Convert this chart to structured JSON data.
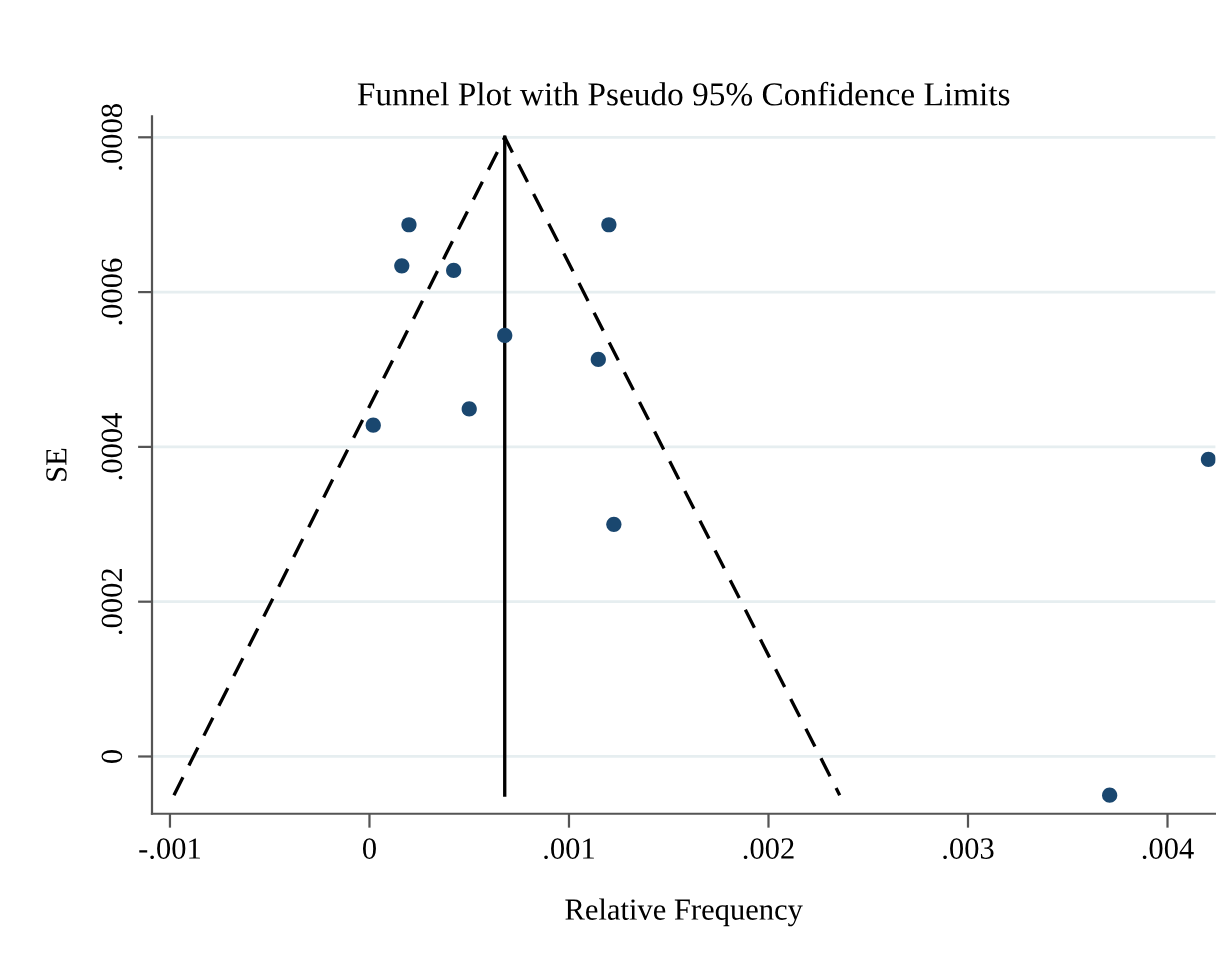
{
  "chart_data": {
    "type": "scatter",
    "title": "Funnel Plot with Pseudo 95% Confidence Limits",
    "xlabel": "Relative Frequency",
    "ylabel": "SE",
    "xlim": [
      -0.00109,
      0.00424
    ],
    "ylim": [
      -7.4e-05,
      0.000827
    ],
    "xticks": [
      {
        "value": -0.001,
        "label": "-.001"
      },
      0,
      {
        "value": 0.001,
        "label": ".001"
      },
      {
        "value": 0.002,
        "label": ".002"
      },
      {
        "value": 0.003,
        "label": ".003"
      },
      {
        "value": 0.004,
        "label": ".004"
      }
    ],
    "yticks": [
      0,
      {
        "value": 0.0002,
        "label": ".0002"
      },
      {
        "value": 0.0004,
        "label": ".0004"
      },
      {
        "value": 0.0006,
        "label": ".0006"
      },
      {
        "value": 0.0008,
        "label": ".0008"
      }
    ],
    "grid": "y",
    "marker": "circle",
    "series": [
      {
        "type": "line",
        "color": "#000000",
        "line_style": "dashed",
        "marker": "none",
        "x": [
          -0.00098,
          0.000678,
          0.002357
        ],
        "values": [
          -5e-05,
          0.0008,
          -5e-05
        ]
      },
      {
        "type": "line",
        "color": "#000000",
        "line_style": "solid",
        "marker": "none",
        "x": [
          0.000678,
          0.000678
        ],
        "values": [
          -5e-05,
          0.0008
        ]
      },
      {
        "color": "#1a476f",
        "x": [
          0.000198,
          0.0012,
          0.000162,
          0.000422,
          0.000678,
          0.001147,
          0.0005,
          1.9e-05,
          0.004205,
          0.001225,
          0.00371
        ],
        "values": [
          0.000687,
          0.000687,
          0.000634,
          0.000628,
          0.000544,
          0.000513,
          0.000449,
          0.000428,
          0.000384,
          0.0003,
          -5e-05
        ]
      }
    ]
  }
}
